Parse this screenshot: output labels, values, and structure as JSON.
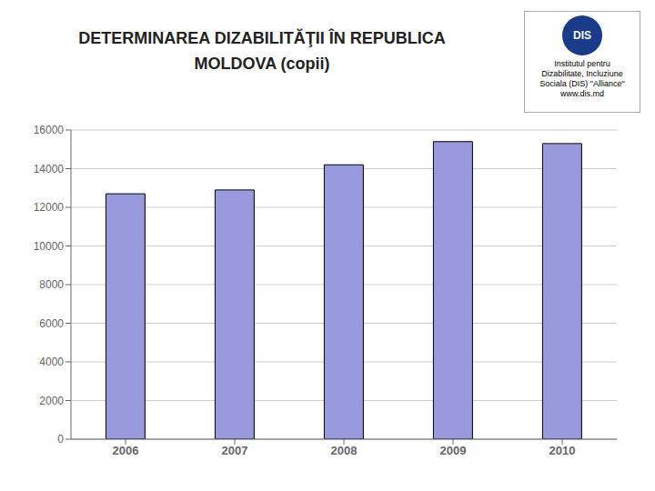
{
  "chart_data": {
    "type": "bar",
    "title": "DETERMINAREA DIZABILITĂŢII ÎN REPUBLICA\nMOLDOVA (copii)",
    "categories": [
      "2006",
      "2007",
      "2008",
      "2009",
      "2010"
    ],
    "values": [
      12700,
      12900,
      14200,
      15400,
      15300
    ],
    "color": "#9999dd",
    "ylim": [
      0,
      16000
    ],
    "yticks": [
      0,
      2000,
      4000,
      6000,
      8000,
      10000,
      12000,
      14000,
      16000
    ],
    "grid": true,
    "annotations": [
      "DIS",
      "Institutul pentru",
      "Dizabilitate, Incluziune",
      "Sociala (DIS) \"Alliance\"",
      "www.dis.md"
    ]
  }
}
